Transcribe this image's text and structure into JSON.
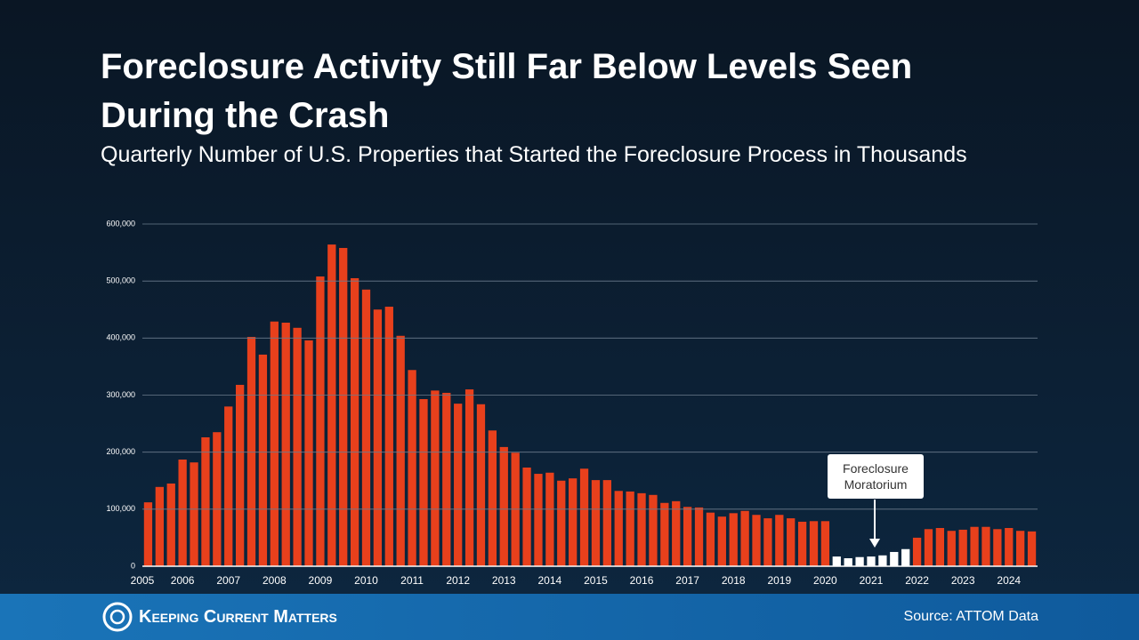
{
  "chart_data": {
    "type": "bar",
    "title": "Foreclosure Activity Still Far Below Levels Seen During the Crash",
    "subtitle": "Quarterly Number of U.S. Properties that Started the Foreclosure Process in Thousands",
    "categories": [
      "2005",
      null,
      null,
      "2006",
      null,
      null,
      null,
      "2007",
      null,
      null,
      null,
      "2008",
      null,
      null,
      null,
      "2009",
      null,
      null,
      null,
      "2010",
      null,
      null,
      null,
      "2011",
      null,
      null,
      null,
      "2012",
      null,
      null,
      null,
      "2013",
      null,
      null,
      null,
      "2014",
      null,
      null,
      null,
      "2015",
      null,
      null,
      null,
      "2016",
      null,
      null,
      null,
      "2017",
      null,
      null,
      null,
      "2018",
      null,
      null,
      null,
      "2019",
      null,
      null,
      null,
      "2020",
      null,
      null,
      null,
      "2021",
      null,
      null,
      null,
      "2022",
      null,
      null,
      null,
      "2023",
      null,
      null,
      null,
      "2024",
      null,
      null
    ],
    "values": [
      112000,
      139000,
      145000,
      187000,
      182000,
      226000,
      235000,
      280000,
      318000,
      402000,
      371000,
      429000,
      427000,
      418000,
      396000,
      508000,
      564000,
      558000,
      505000,
      485000,
      450000,
      455000,
      404000,
      344000,
      293000,
      308000,
      304000,
      285000,
      310000,
      284000,
      238000,
      209000,
      199000,
      173000,
      162000,
      164000,
      150000,
      154000,
      171000,
      151000,
      151000,
      132000,
      131000,
      128000,
      125000,
      111000,
      114000,
      104000,
      103000,
      94000,
      87000,
      93000,
      97000,
      90000,
      84000,
      90000,
      84000,
      78000,
      79000,
      79000,
      17000,
      14000,
      16000,
      17000,
      19000,
      25000,
      30000,
      50000,
      65000,
      67000,
      62000,
      64000,
      69000,
      69000,
      65000,
      67000,
      62000,
      61000
    ],
    "colors": [
      "#e8401c",
      "#e8401c",
      "#e8401c",
      "#e8401c",
      "#e8401c",
      "#e8401c",
      "#e8401c",
      "#e8401c",
      "#e8401c",
      "#e8401c",
      "#e8401c",
      "#e8401c",
      "#e8401c",
      "#e8401c",
      "#e8401c",
      "#e8401c",
      "#e8401c",
      "#e8401c",
      "#e8401c",
      "#e8401c",
      "#e8401c",
      "#e8401c",
      "#e8401c",
      "#e8401c",
      "#e8401c",
      "#e8401c",
      "#e8401c",
      "#e8401c",
      "#e8401c",
      "#e8401c",
      "#e8401c",
      "#e8401c",
      "#e8401c",
      "#e8401c",
      "#e8401c",
      "#e8401c",
      "#e8401c",
      "#e8401c",
      "#e8401c",
      "#e8401c",
      "#e8401c",
      "#e8401c",
      "#e8401c",
      "#e8401c",
      "#e8401c",
      "#e8401c",
      "#e8401c",
      "#e8401c",
      "#e8401c",
      "#e8401c",
      "#e8401c",
      "#e8401c",
      "#e8401c",
      "#e8401c",
      "#e8401c",
      "#e8401c",
      "#e8401c",
      "#e8401c",
      "#e8401c",
      "#e8401c",
      "#ffffff",
      "#ffffff",
      "#ffffff",
      "#ffffff",
      "#ffffff",
      "#ffffff",
      "#ffffff",
      "#e8401c",
      "#e8401c",
      "#e8401c",
      "#e8401c",
      "#e8401c",
      "#e8401c",
      "#e8401c",
      "#e8401c",
      "#e8401c",
      "#e8401c",
      "#e8401c"
    ],
    "ylim": [
      0,
      600000
    ],
    "yticks": [
      {
        "value": 0,
        "label": "0"
      },
      {
        "value": 100000,
        "label": "100,000"
      },
      {
        "value": 200000,
        "label": "200,000"
      },
      {
        "value": 300000,
        "label": "300,000"
      },
      {
        "value": 400000,
        "label": "400,000"
      },
      {
        "value": 500000,
        "label": "500,000"
      },
      {
        "value": 600000,
        "label": "600,000"
      }
    ],
    "grid": true,
    "annotation": "Foreclosure Moratorium",
    "source": "Source: ATTOM Data",
    "brand": "Keeping Current Matters"
  }
}
